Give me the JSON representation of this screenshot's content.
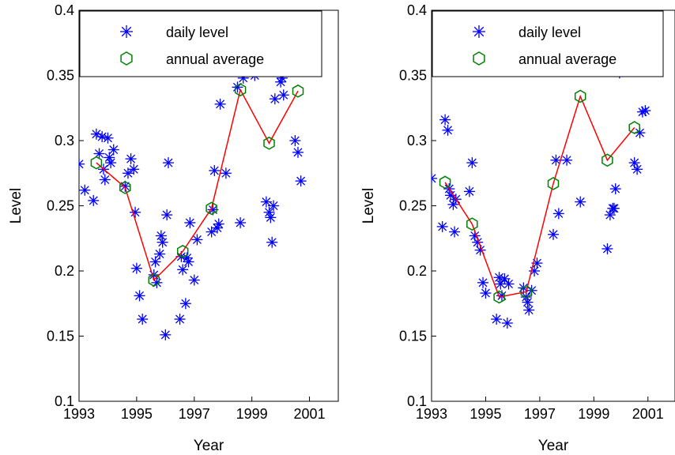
{
  "chart_data": [
    {
      "type": "scatter",
      "xlabel": "Year",
      "ylabel": "Level",
      "xlim": [
        1993,
        2002
      ],
      "ylim": [
        0.1,
        0.4
      ],
      "xticks": [
        1993,
        1995,
        1997,
        1999,
        2001
      ],
      "yticks": [
        0.1,
        0.15,
        0.2,
        0.25,
        0.3,
        0.35,
        0.4
      ],
      "ytick_labels": [
        "0.1",
        "0.15",
        "0.2",
        "0.25",
        "0.3",
        "0.35",
        "0.4"
      ],
      "grid": false,
      "legend_placement": "top",
      "series": [
        {
          "name": "daily level",
          "marker": "asterisk",
          "color": "#0000ff",
          "points": [
            [
              1993.0,
              0.282
            ],
            [
              1993.2,
              0.262
            ],
            [
              1993.5,
              0.254
            ],
            [
              1993.6,
              0.305
            ],
            [
              1993.7,
              0.29
            ],
            [
              1993.8,
              0.303
            ],
            [
              1993.85,
              0.278
            ],
            [
              1993.9,
              0.27
            ],
            [
              1994.0,
              0.302
            ],
            [
              1994.05,
              0.287
            ],
            [
              1994.1,
              0.283
            ],
            [
              1994.2,
              0.293
            ],
            [
              1994.6,
              0.265
            ],
            [
              1994.7,
              0.275
            ],
            [
              1994.8,
              0.286
            ],
            [
              1994.9,
              0.278
            ],
            [
              1994.95,
              0.245
            ],
            [
              1995.0,
              0.202
            ],
            [
              1995.1,
              0.181
            ],
            [
              1995.2,
              0.163
            ],
            [
              1995.6,
              0.197
            ],
            [
              1995.65,
              0.207
            ],
            [
              1995.7,
              0.191
            ],
            [
              1995.8,
              0.213
            ],
            [
              1995.85,
              0.227
            ],
            [
              1995.9,
              0.222
            ],
            [
              1996.0,
              0.151
            ],
            [
              1996.05,
              0.243
            ],
            [
              1996.1,
              0.283
            ],
            [
              1996.5,
              0.163
            ],
            [
              1996.55,
              0.211
            ],
            [
              1996.6,
              0.201
            ],
            [
              1996.7,
              0.175
            ],
            [
              1996.75,
              0.21
            ],
            [
              1996.8,
              0.207
            ],
            [
              1996.85,
              0.237
            ],
            [
              1997.0,
              0.193
            ],
            [
              1997.1,
              0.224
            ],
            [
              1997.6,
              0.23
            ],
            [
              1997.65,
              0.247
            ],
            [
              1997.7,
              0.277
            ],
            [
              1997.8,
              0.233
            ],
            [
              1997.85,
              0.236
            ],
            [
              1997.9,
              0.328
            ],
            [
              1998.0,
              0.361
            ],
            [
              1998.1,
              0.275
            ],
            [
              1998.5,
              0.341
            ],
            [
              1998.6,
              0.237
            ],
            [
              1998.7,
              0.348
            ],
            [
              1998.8,
              0.355
            ],
            [
              1998.9,
              0.372
            ],
            [
              1999.0,
              0.373
            ],
            [
              1999.1,
              0.35
            ],
            [
              1999.5,
              0.253
            ],
            [
              1999.6,
              0.245
            ],
            [
              1999.65,
              0.241
            ],
            [
              1999.7,
              0.222
            ],
            [
              1999.75,
              0.25
            ],
            [
              1999.8,
              0.332
            ],
            [
              1999.9,
              0.355
            ],
            [
              2000.0,
              0.345
            ],
            [
              2000.05,
              0.348
            ],
            [
              2000.1,
              0.335
            ],
            [
              2000.5,
              0.3
            ],
            [
              2000.6,
              0.291
            ],
            [
              2000.7,
              0.269
            ],
            [
              2000.85,
              0.382
            ],
            [
              2000.95,
              0.355
            ]
          ]
        },
        {
          "name": "annual average",
          "marker": "hexagon",
          "color": "#008000",
          "line_color": "#ff0000",
          "points": [
            [
              1993.6,
              0.283
            ],
            [
              1994.6,
              0.264
            ],
            [
              1995.6,
              0.193
            ],
            [
              1996.6,
              0.215
            ],
            [
              1997.6,
              0.248
            ],
            [
              1998.6,
              0.339
            ],
            [
              1999.6,
              0.298
            ],
            [
              2000.6,
              0.338
            ]
          ]
        }
      ]
    },
    {
      "type": "scatter",
      "xlabel": "Year",
      "ylabel": "Level",
      "xlim": [
        1993,
        2002
      ],
      "ylim": [
        0.1,
        0.4
      ],
      "xticks": [
        1993,
        1995,
        1997,
        1999,
        2001
      ],
      "yticks": [
        0.1,
        0.15,
        0.2,
        0.25,
        0.3,
        0.35,
        0.4
      ],
      "ytick_labels": [
        "0.1",
        "0.15",
        "0.2",
        "0.25",
        "0.3",
        "0.35",
        "0.4"
      ],
      "grid": false,
      "legend_placement": "top",
      "series": [
        {
          "name": "daily level",
          "marker": "asterisk",
          "color": "#0000ff",
          "points": [
            [
              1993.0,
              0.271
            ],
            [
              1993.4,
              0.234
            ],
            [
              1993.5,
              0.316
            ],
            [
              1993.6,
              0.308
            ],
            [
              1993.65,
              0.263
            ],
            [
              1993.7,
              0.258
            ],
            [
              1993.8,
              0.251
            ],
            [
              1993.85,
              0.23
            ],
            [
              1993.9,
              0.255
            ],
            [
              1994.4,
              0.261
            ],
            [
              1994.5,
              0.283
            ],
            [
              1994.6,
              0.227
            ],
            [
              1994.7,
              0.222
            ],
            [
              1994.8,
              0.216
            ],
            [
              1994.9,
              0.191
            ],
            [
              1995.0,
              0.183
            ],
            [
              1995.4,
              0.163
            ],
            [
              1995.5,
              0.195
            ],
            [
              1995.55,
              0.19
            ],
            [
              1995.6,
              0.181
            ],
            [
              1995.7,
              0.194
            ],
            [
              1995.8,
              0.16
            ],
            [
              1995.85,
              0.19
            ],
            [
              1996.4,
              0.187
            ],
            [
              1996.5,
              0.18
            ],
            [
              1996.55,
              0.176
            ],
            [
              1996.6,
              0.17
            ],
            [
              1996.7,
              0.185
            ],
            [
              1996.8,
              0.2
            ],
            [
              1996.9,
              0.206
            ],
            [
              1997.5,
              0.228
            ],
            [
              1997.6,
              0.285
            ],
            [
              1997.7,
              0.244
            ],
            [
              1997.8,
              0.368
            ],
            [
              1998.0,
              0.285
            ],
            [
              1998.5,
              0.253
            ],
            [
              1998.6,
              0.357
            ],
            [
              1998.7,
              0.388
            ],
            [
              1998.8,
              0.38
            ],
            [
              1998.85,
              0.385
            ],
            [
              1999.5,
              0.217
            ],
            [
              1999.6,
              0.243
            ],
            [
              1999.7,
              0.248
            ],
            [
              1999.75,
              0.248
            ],
            [
              1999.8,
              0.263
            ],
            [
              1999.9,
              0.381
            ],
            [
              1999.95,
              0.352
            ],
            [
              2000.5,
              0.283
            ],
            [
              2000.6,
              0.278
            ],
            [
              2000.7,
              0.306
            ],
            [
              2000.8,
              0.322
            ],
            [
              2000.9,
              0.323
            ]
          ]
        },
        {
          "name": "annual average",
          "marker": "hexagon",
          "color": "#008000",
          "line_color": "#ff0000",
          "points": [
            [
              1993.5,
              0.268
            ],
            [
              1994.5,
              0.236
            ],
            [
              1995.5,
              0.18
            ],
            [
              1996.5,
              0.184
            ],
            [
              1997.5,
              0.267
            ],
            [
              1998.5,
              0.334
            ],
            [
              1999.5,
              0.285
            ],
            [
              2000.5,
              0.31
            ]
          ]
        }
      ]
    }
  ]
}
